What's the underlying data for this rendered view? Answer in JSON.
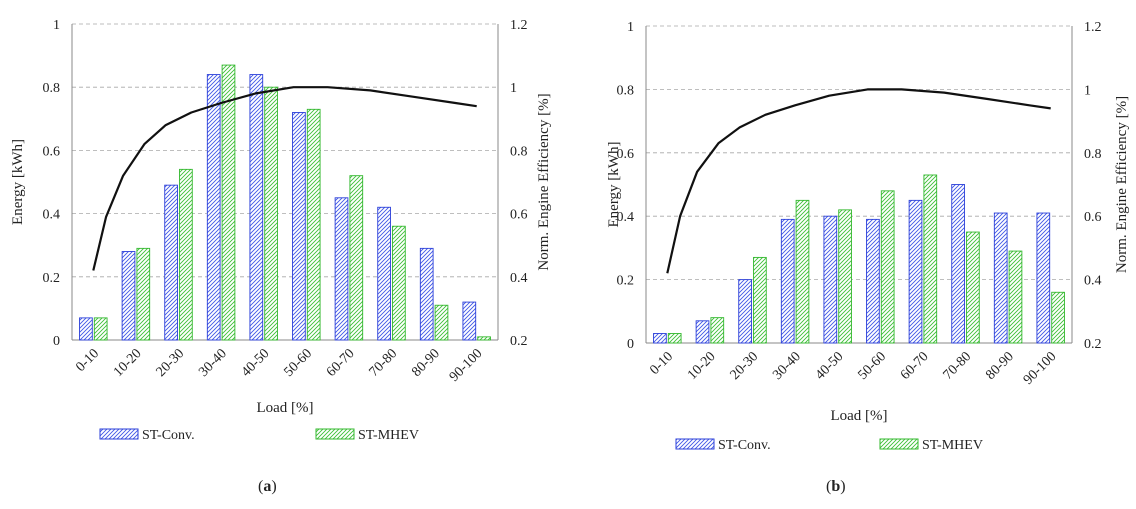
{
  "chart_data": [
    {
      "type": "bar",
      "panel_label": "a",
      "categories": [
        "0-10",
        "10-20",
        "20-30",
        "30-40",
        "40-50",
        "50-60",
        "60-70",
        "70-80",
        "80-90",
        "90-100"
      ],
      "series": [
        {
          "name": "ST-Conv.",
          "color": "#2b3fd9",
          "values": [
            0.07,
            0.28,
            0.49,
            0.84,
            0.84,
            0.72,
            0.45,
            0.42,
            0.29,
            0.12
          ]
        },
        {
          "name": "ST-MHEV",
          "color": "#33b82e",
          "values": [
            0.07,
            0.29,
            0.54,
            0.87,
            0.8,
            0.73,
            0.52,
            0.36,
            0.11,
            0.01
          ]
        }
      ],
      "line": {
        "name": "Norm. Engine Efficiency",
        "x": [
          0.5,
          0.8,
          1.2,
          1.7,
          2.2,
          2.8,
          3.5,
          4.3,
          5.2,
          6.0,
          7.0,
          8.0,
          9.0,
          9.5
        ],
        "y": [
          0.42,
          0.59,
          0.72,
          0.82,
          0.88,
          0.92,
          0.95,
          0.98,
          1.0,
          1.0,
          0.99,
          0.97,
          0.95,
          0.94
        ]
      },
      "xlabel": "Load [%]",
      "ylabel": "Energy [kWh]",
      "y2label": "Norm. Engine Efficiency [%]",
      "ylim": [
        0,
        1
      ],
      "y2lim": [
        0.2,
        1.2
      ],
      "yticks": [
        "0",
        "0.2",
        "0.4",
        "0.6",
        "0.8",
        "1"
      ],
      "y2ticks": [
        "0.2",
        "0.4",
        "0.6",
        "0.8",
        "1",
        "1.2"
      ],
      "grid": "horizontal dashed",
      "legend": "bottom"
    },
    {
      "type": "bar",
      "panel_label": "b",
      "categories": [
        "0-10",
        "10-20",
        "20-30",
        "30-40",
        "40-50",
        "50-60",
        "60-70",
        "70-80",
        "80-90",
        "90-100"
      ],
      "series": [
        {
          "name": "ST-Conv.",
          "color": "#2b3fd9",
          "values": [
            0.03,
            0.07,
            0.2,
            0.39,
            0.4,
            0.39,
            0.45,
            0.5,
            0.41,
            0.41
          ]
        },
        {
          "name": "ST-MHEV",
          "color": "#33b82e",
          "values": [
            0.03,
            0.08,
            0.27,
            0.45,
            0.42,
            0.48,
            0.53,
            0.35,
            0.29,
            0.16
          ]
        }
      ],
      "line": {
        "name": "Norm. Engine Efficiency",
        "x": [
          0.5,
          0.8,
          1.2,
          1.7,
          2.2,
          2.8,
          3.5,
          4.3,
          5.2,
          6.0,
          7.0,
          8.0,
          9.0,
          9.5
        ],
        "y": [
          0.42,
          0.6,
          0.74,
          0.83,
          0.88,
          0.92,
          0.95,
          0.98,
          1.0,
          1.0,
          0.99,
          0.97,
          0.95,
          0.94
        ]
      },
      "xlabel": "Load [%]",
      "ylabel": "Energy [kWh]",
      "y2label": "Norm. Engine Efficiency [%]",
      "ylim": [
        0,
        1
      ],
      "y2lim": [
        0.2,
        1.2
      ],
      "yticks": [
        "0",
        "0.2",
        "0.4",
        "0.6",
        "0.8",
        "1"
      ],
      "y2ticks": [
        "0.2",
        "0.4",
        "0.6",
        "0.8",
        "1",
        "1.2"
      ],
      "grid": "horizontal dashed",
      "legend": "bottom"
    }
  ]
}
